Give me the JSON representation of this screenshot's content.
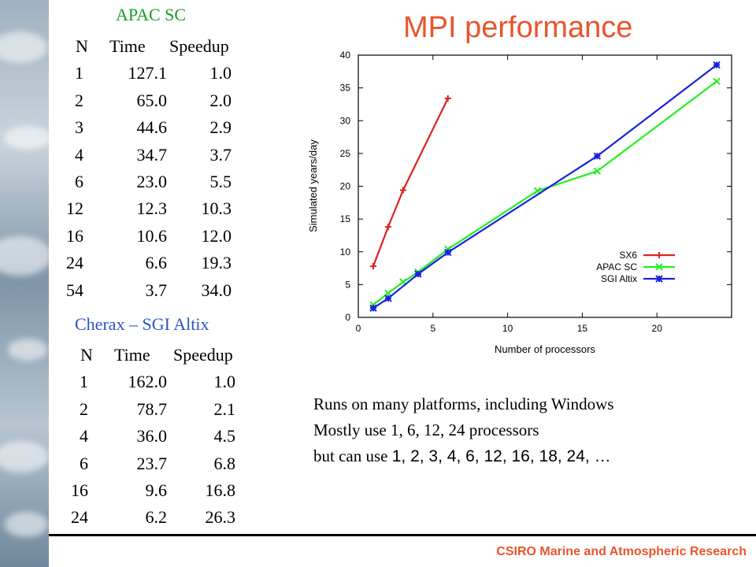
{
  "apac_table": {
    "caption": "APAC SC",
    "headers": [
      "N",
      "Time",
      "Speedup"
    ],
    "rows": [
      [
        "1",
        "127.1",
        "1.0"
      ],
      [
        "2",
        "65.0",
        "2.0"
      ],
      [
        "3",
        "44.6",
        "2.9"
      ],
      [
        "4",
        "34.7",
        "3.7"
      ],
      [
        "6",
        "23.0",
        "5.5"
      ],
      [
        "12",
        "12.3",
        "10.3"
      ],
      [
        "16",
        "10.6",
        "12.0"
      ],
      [
        "24",
        "6.6",
        "19.3"
      ],
      [
        "54",
        "3.7",
        "34.0"
      ]
    ]
  },
  "altix_table": {
    "caption": "Cherax – SGI Altix",
    "headers": [
      "N",
      "Time",
      "Speedup"
    ],
    "rows": [
      [
        "1",
        "162.0",
        "1.0"
      ],
      [
        "2",
        "78.7",
        "2.1"
      ],
      [
        "4",
        "36.0",
        "4.5"
      ],
      [
        "6",
        "23.7",
        "6.8"
      ],
      [
        "16",
        "9.6",
        "16.8"
      ],
      [
        "24",
        "6.2",
        "26.3"
      ]
    ]
  },
  "slide_title": "MPI performance",
  "notes": {
    "line1": "Runs on many platforms, including Windows",
    "line2": "Mostly use 1, 6, 12, 24 processors",
    "line3_prefix": "but can use ",
    "line3_numbers": "1, 2, 3, 4, 6, 12, 16, 18, 24, …"
  },
  "footer": "CSIRO Marine and Atmospheric Research",
  "colors": {
    "title": "#e8552b",
    "apac_caption": "#1a9a2a",
    "altix_caption": "#2a55c8"
  },
  "chart_data": {
    "type": "line",
    "xlabel": "Number of processors",
    "ylabel": "Simulated years/day",
    "xlim": [
      0,
      25
    ],
    "ylim": [
      0,
      40
    ],
    "xticks": [
      0,
      5,
      10,
      15,
      20
    ],
    "yticks": [
      0,
      5,
      10,
      15,
      20,
      25,
      30,
      35,
      40
    ],
    "legend_position": "bottom-right",
    "series": [
      {
        "name": "SX6",
        "color": "#e02020",
        "marker": "plus",
        "x": [
          1,
          2,
          3,
          6
        ],
        "y": [
          7.8,
          13.8,
          19.4,
          33.4
        ]
      },
      {
        "name": "APAC SC",
        "color": "#22ee22",
        "marker": "x",
        "x": [
          1,
          2,
          3,
          4,
          6,
          12,
          16,
          24
        ],
        "y": [
          1.9,
          3.7,
          5.4,
          6.9,
          10.4,
          19.3,
          22.3,
          36.0
        ]
      },
      {
        "name": "SGI Altix",
        "color": "#1a22dd",
        "marker": "star",
        "x": [
          1,
          2,
          4,
          6,
          16,
          24
        ],
        "y": [
          1.4,
          2.9,
          6.6,
          9.9,
          24.6,
          38.5
        ]
      }
    ]
  }
}
